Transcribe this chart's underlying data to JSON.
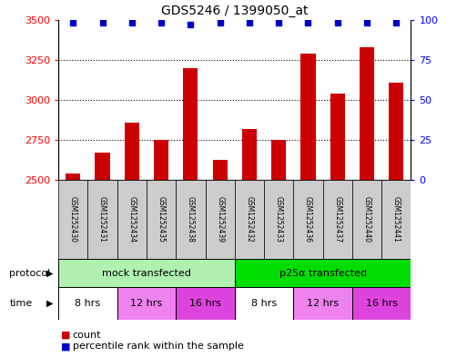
{
  "title": "GDS5246 / 1399050_at",
  "samples": [
    "GSM1252430",
    "GSM1252431",
    "GSM1252434",
    "GSM1252435",
    "GSM1252438",
    "GSM1252439",
    "GSM1252432",
    "GSM1252433",
    "GSM1252436",
    "GSM1252437",
    "GSM1252440",
    "GSM1252441"
  ],
  "counts": [
    2540,
    2670,
    2860,
    2750,
    3200,
    2625,
    2820,
    2750,
    3290,
    3040,
    3330,
    3110
  ],
  "percentiles": [
    98,
    98,
    98,
    98,
    97,
    98,
    98,
    98,
    98,
    98,
    98,
    98
  ],
  "bar_color": "#cc0000",
  "dot_color": "#0000cc",
  "ylim_left": [
    2500,
    3500
  ],
  "ylim_right": [
    0,
    100
  ],
  "yticks_left": [
    2500,
    2750,
    3000,
    3250,
    3500
  ],
  "yticks_right": [
    0,
    25,
    50,
    75,
    100
  ],
  "protocols": [
    {
      "label": "mock transfected",
      "start": 0,
      "end": 6,
      "color": "#b0f0b0"
    },
    {
      "label": "p25α transfected",
      "start": 6,
      "end": 12,
      "color": "#00dd00"
    }
  ],
  "times": [
    {
      "label": "8 hrs",
      "start": 0,
      "end": 2,
      "color": "#ffffff"
    },
    {
      "label": "12 hrs",
      "start": 2,
      "end": 4,
      "color": "#ee82ee"
    },
    {
      "label": "16 hrs",
      "start": 4,
      "end": 6,
      "color": "#dd44dd"
    },
    {
      "label": "8 hrs",
      "start": 6,
      "end": 8,
      "color": "#ffffff"
    },
    {
      "label": "12 hrs",
      "start": 8,
      "end": 10,
      "color": "#ee82ee"
    },
    {
      "label": "16 hrs",
      "start": 10,
      "end": 12,
      "color": "#dd44dd"
    }
  ],
  "bar_width": 0.5,
  "background_color": "#ffffff",
  "sample_box_color": "#cccccc",
  "protocol_label": "protocol",
  "time_label": "time",
  "legend_count": "count",
  "legend_percentile": "percentile rank within the sample"
}
